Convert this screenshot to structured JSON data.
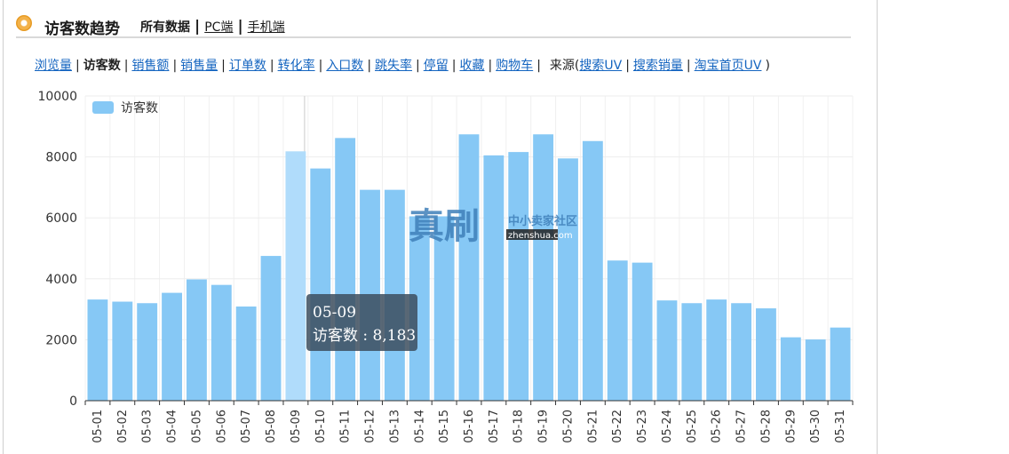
{
  "header": {
    "title": "访客数趋势",
    "all_data": "所有数据",
    "pc_label": "PC端",
    "mobile_label": "手机端"
  },
  "metrics": {
    "items": [
      "浏览量",
      "访客数",
      "销售额",
      "销售量",
      "订单数",
      "转化率",
      "入口数",
      "跳失率",
      "停留",
      "收藏",
      "购物车"
    ],
    "active": "访客数",
    "source_label": "来源(",
    "source_items": [
      "搜索UV",
      "搜索销量",
      "淘宝首页UV"
    ],
    "source_close": ")"
  },
  "chart_data": {
    "type": "bar",
    "categories": [
      "05-01",
      "05-02",
      "05-03",
      "05-04",
      "05-05",
      "05-06",
      "05-07",
      "05-08",
      "05-09",
      "05-10",
      "05-11",
      "05-12",
      "05-13",
      "05-14",
      "05-15",
      "05-16",
      "05-17",
      "05-18",
      "05-19",
      "05-20",
      "05-21",
      "05-22",
      "05-23",
      "05-24",
      "05-25",
      "05-26",
      "05-27",
      "05-28",
      "05-29",
      "05-30",
      "05-31"
    ],
    "series": [
      {
        "name": "访客数",
        "values": [
          3320,
          3250,
          3200,
          3540,
          3980,
          3800,
          3090,
          4750,
          8183,
          7620,
          8620,
          6920,
          6920,
          6050,
          6050,
          8740,
          8050,
          8160,
          8740,
          7950,
          8520,
          4600,
          4530,
          3290,
          3200,
          3320,
          3200,
          3030,
          2080,
          2010,
          2400
        ],
        "color": "#86c8f5"
      }
    ],
    "highlight_index": 8,
    "highlight_color": "#b0dcfb",
    "yticks": [
      0,
      2000,
      4000,
      6000,
      8000,
      10000
    ],
    "ylim": [
      0,
      10000
    ],
    "legend_position": "top-left",
    "grid": true
  },
  "tooltip": {
    "category": "05-09",
    "label": "访客数 : 8,183"
  },
  "watermark": {
    "main": "真刷",
    "tagline": "中小卖家社区",
    "site": "zhenshua.com"
  }
}
